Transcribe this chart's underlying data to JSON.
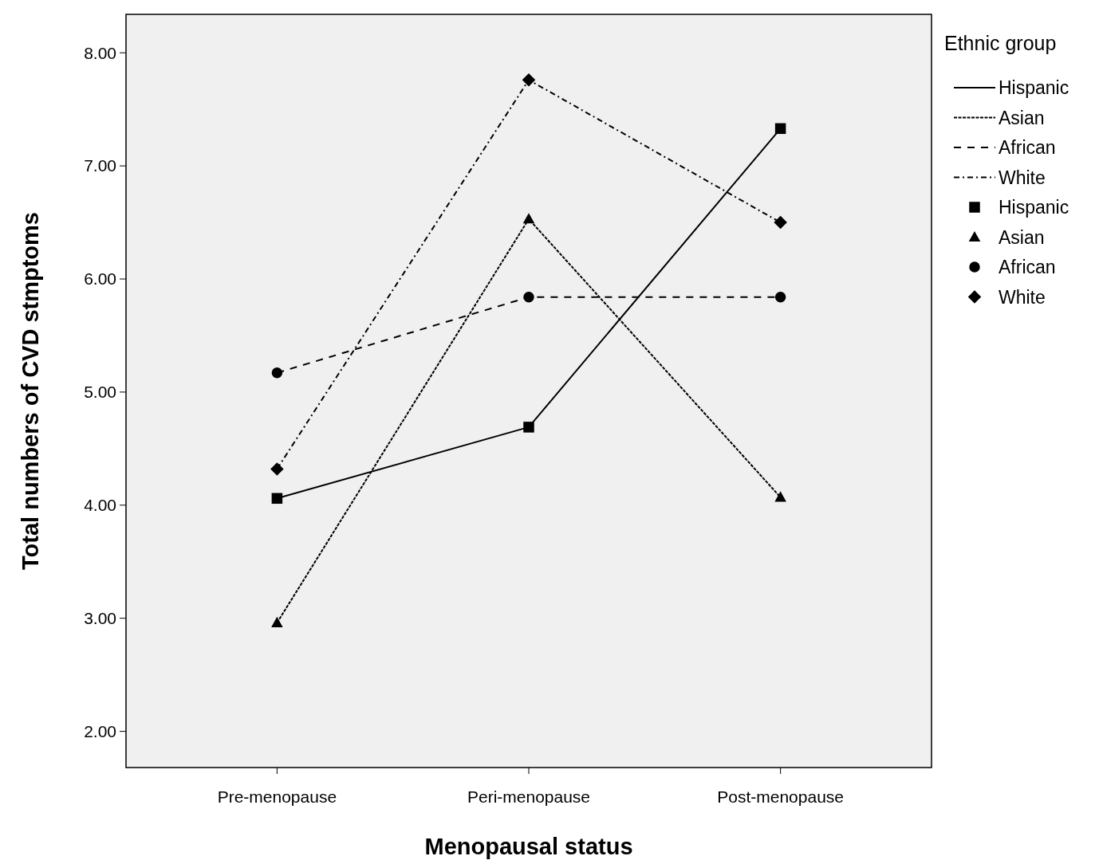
{
  "chart_data": {
    "type": "line",
    "xlabel": "Menopausal status",
    "ylabel": "Total numbers of CVD stmptoms",
    "legend_title": "Ethnic group",
    "legend": "right",
    "categories": [
      "Pre-menopause",
      "Peri-menopause",
      "Post-menopause"
    ],
    "ylim": [
      1.68,
      8.34
    ],
    "yticks": [
      {
        "value": 2,
        "label": "2.00"
      },
      {
        "value": 3,
        "label": "3.00"
      },
      {
        "value": 4,
        "label": "4.00"
      },
      {
        "value": 5,
        "label": "5.00"
      },
      {
        "value": 6,
        "label": "6.00"
      },
      {
        "value": 7,
        "label": "7.00"
      },
      {
        "value": 8,
        "label": "8.00"
      }
    ],
    "grid": false,
    "series": [
      {
        "name": "Hispanic",
        "color": "#000000",
        "marker": "square",
        "line_style": "solid",
        "values": [
          4.06,
          4.69,
          7.33
        ]
      },
      {
        "name": "Asian",
        "color": "#000000",
        "marker": "triangle",
        "line_style": "dotted",
        "values": [
          2.96,
          6.53,
          4.07
        ]
      },
      {
        "name": "African",
        "color": "#000000",
        "marker": "circle",
        "line_style": "dashed",
        "values": [
          5.17,
          5.84,
          5.84
        ]
      },
      {
        "name": "White",
        "color": "#000000",
        "marker": "diamond",
        "line_style": "dashdot",
        "values": [
          4.32,
          7.76,
          6.5
        ]
      }
    ]
  }
}
